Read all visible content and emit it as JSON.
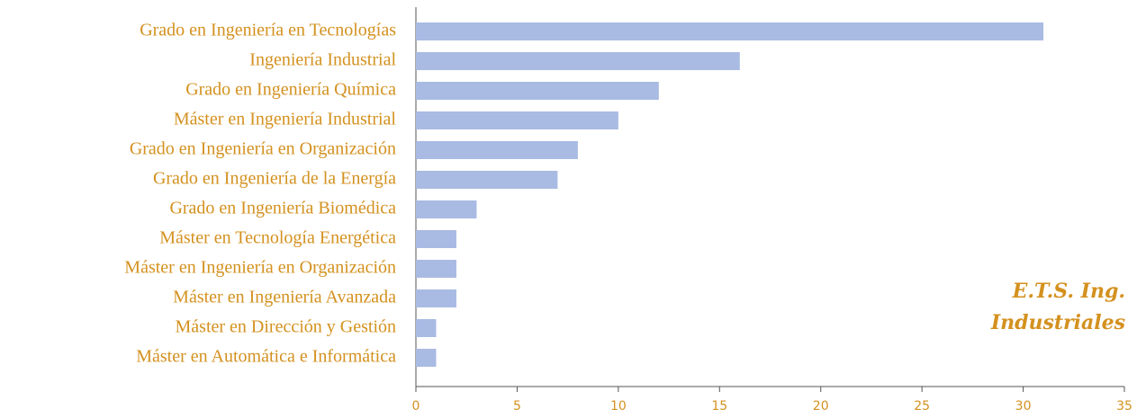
{
  "chart_data": {
    "type": "barh",
    "categories": [
      "Grado en Ingeniería en Tecnologías",
      "Ingeniería Industrial",
      "Grado en Ingeniería Química",
      "Máster en Ingeniería Industrial",
      "Grado en Ingeniería en Organización",
      "Grado en Ingeniería de la Energía",
      "Grado en Ingeniería Biomédica",
      "Máster en Tecnología Energética",
      "Máster en Ingeniería en Organización",
      "Máster en Ingeniería Avanzada",
      "Máster en Dirección y Gestión",
      "Máster en Automática e Informática"
    ],
    "values": [
      31,
      16,
      12,
      10,
      8,
      7,
      3,
      2,
      2,
      2,
      1,
      1
    ],
    "color": "#a9bbe3",
    "xlim": [
      0,
      35
    ],
    "xticks": [
      0,
      5,
      10,
      15,
      20,
      25,
      30,
      35
    ],
    "annotation": [
      "E.T.S. Ing.",
      "Industriales"
    ]
  }
}
